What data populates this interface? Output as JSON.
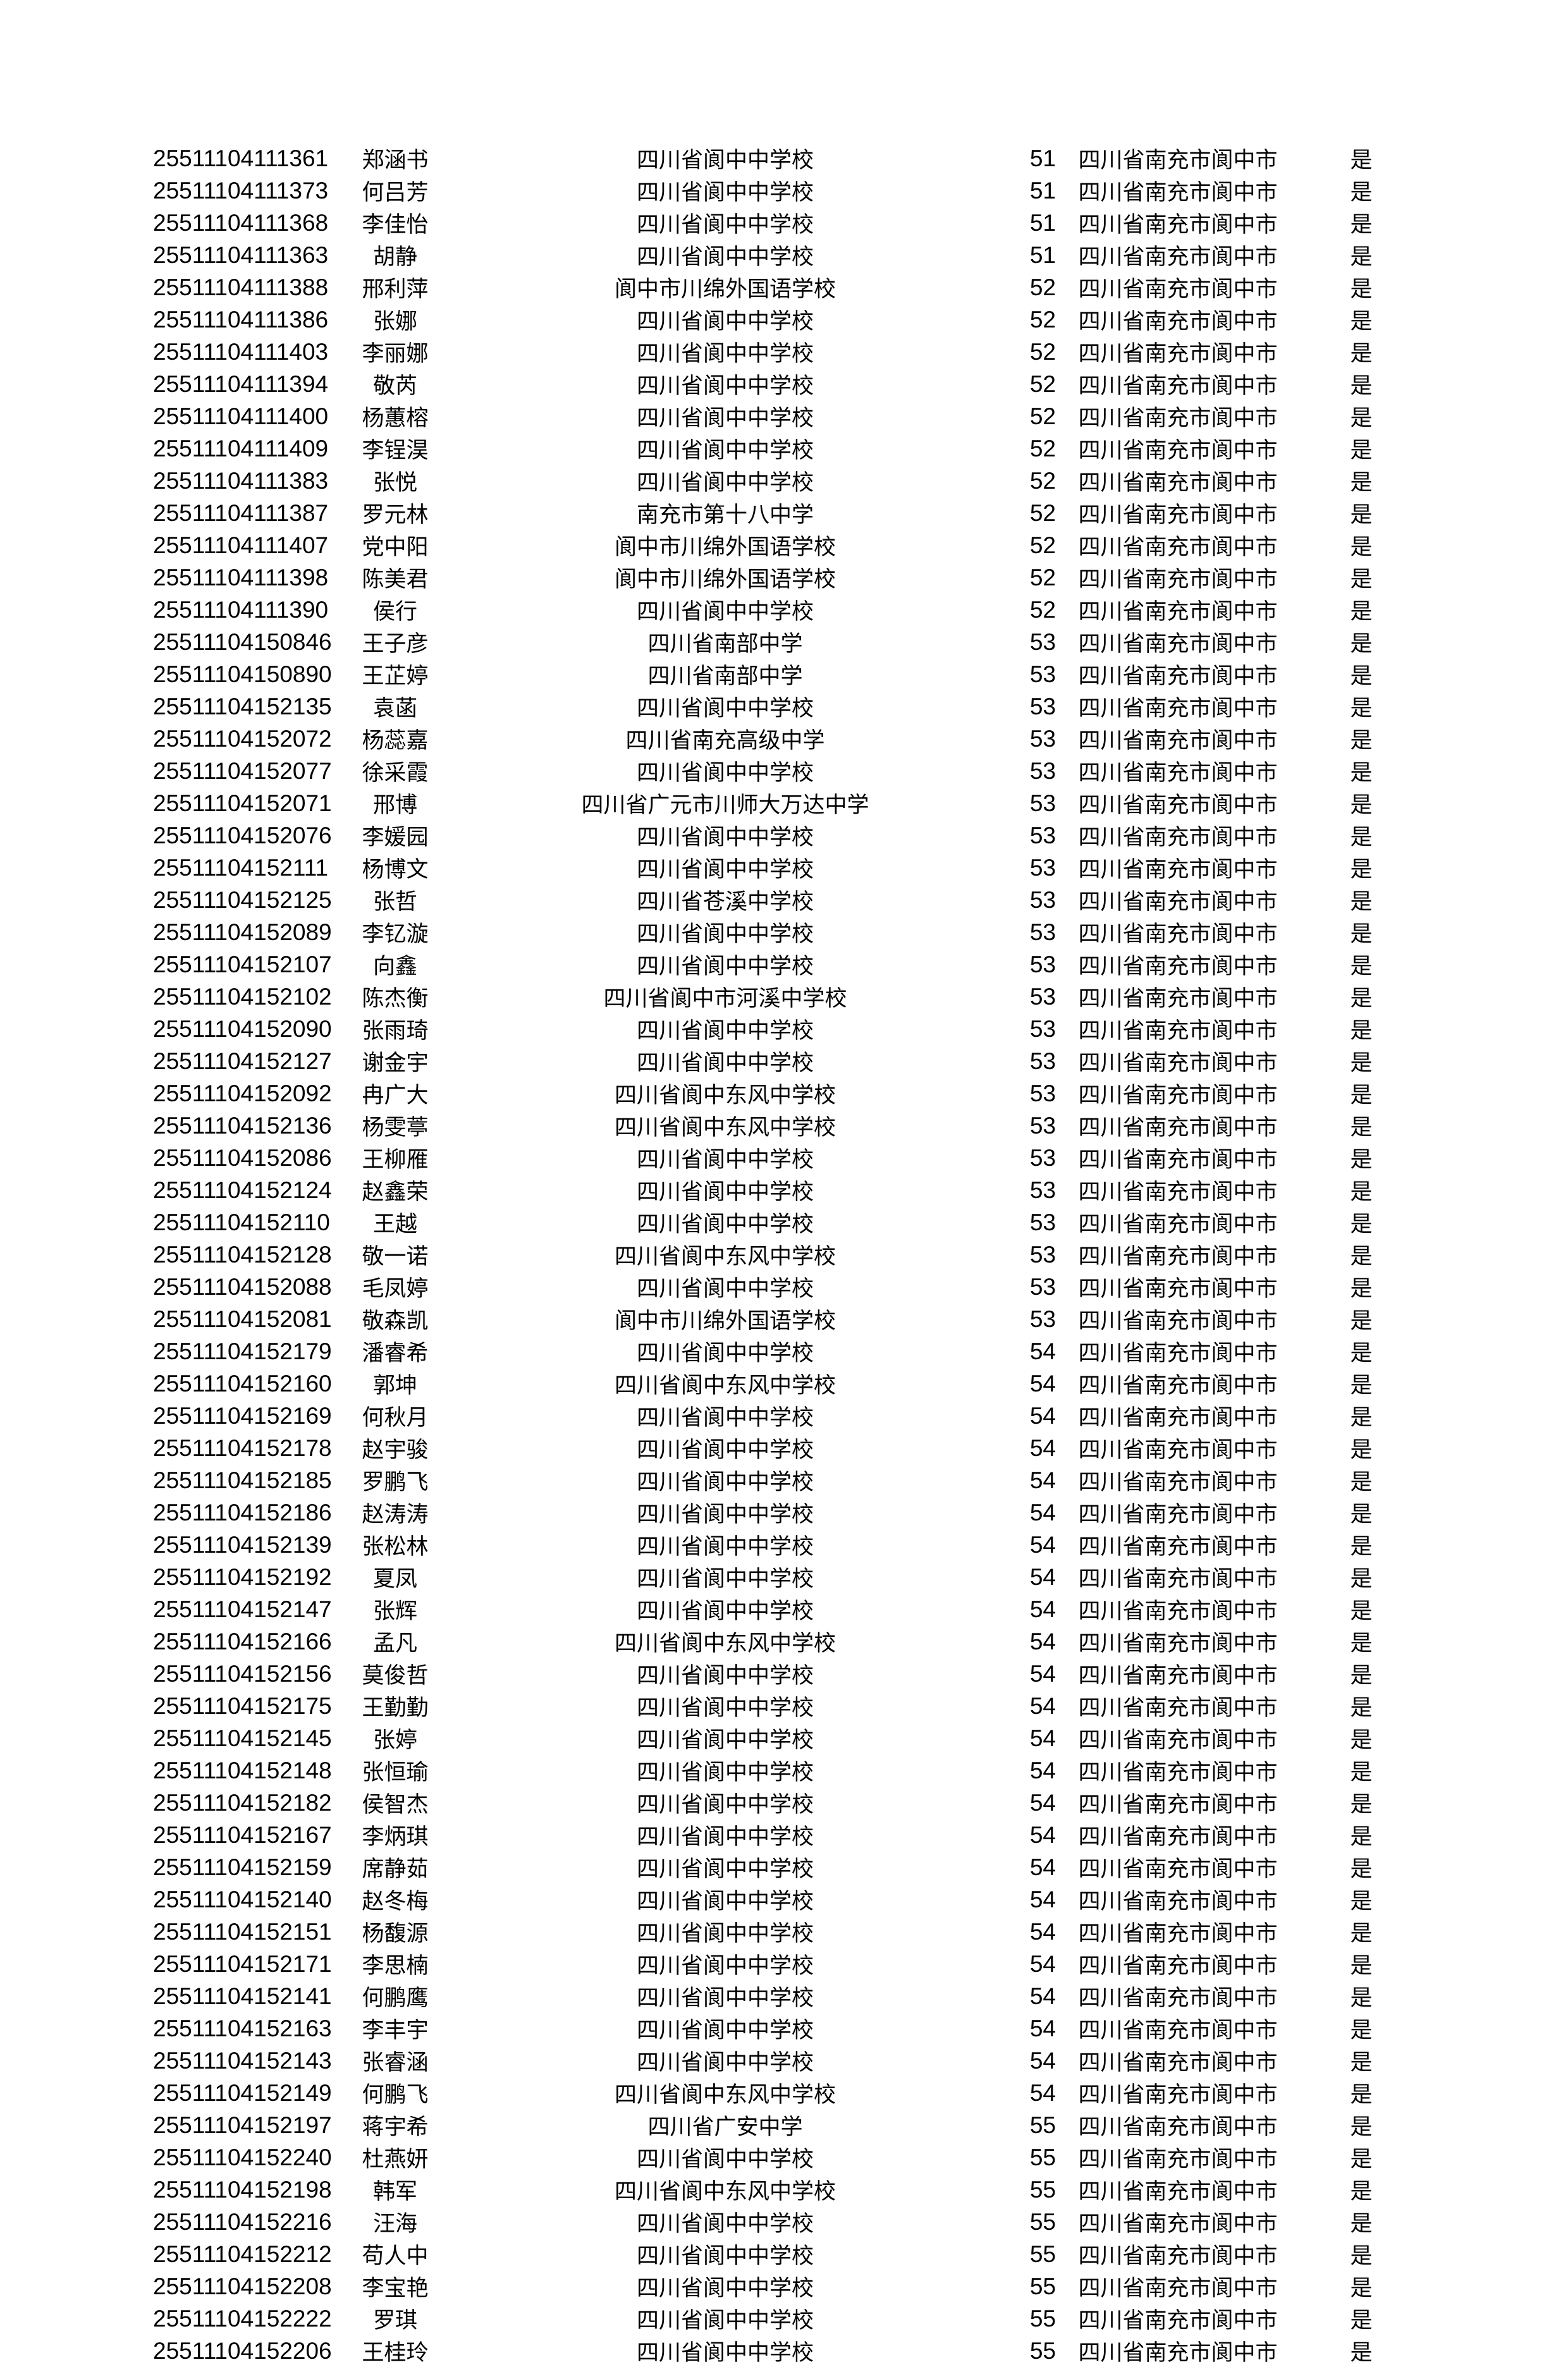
{
  "page": {
    "background_color": "#ffffff",
    "text_color": "#000000"
  },
  "table": {
    "rows": [
      [
        "25511104111361",
        "郑涵书",
        "四川省阆中中学校",
        "51",
        "四川省南充市阆中市",
        "是"
      ],
      [
        "25511104111373",
        "何吕芳",
        "四川省阆中中学校",
        "51",
        "四川省南充市阆中市",
        "是"
      ],
      [
        "25511104111368",
        "李佳怡",
        "四川省阆中中学校",
        "51",
        "四川省南充市阆中市",
        "是"
      ],
      [
        "25511104111363",
        "胡静",
        "四川省阆中中学校",
        "51",
        "四川省南充市阆中市",
        "是"
      ],
      [
        "25511104111388",
        "邢利萍",
        "阆中市川绵外国语学校",
        "52",
        "四川省南充市阆中市",
        "是"
      ],
      [
        "25511104111386",
        "张娜",
        "四川省阆中中学校",
        "52",
        "四川省南充市阆中市",
        "是"
      ],
      [
        "25511104111403",
        "李丽娜",
        "四川省阆中中学校",
        "52",
        "四川省南充市阆中市",
        "是"
      ],
      [
        "25511104111394",
        "敬芮",
        "四川省阆中中学校",
        "52",
        "四川省南充市阆中市",
        "是"
      ],
      [
        "25511104111400",
        "杨蕙榕",
        "四川省阆中中学校",
        "52",
        "四川省南充市阆中市",
        "是"
      ],
      [
        "25511104111409",
        "李锃淏",
        "四川省阆中中学校",
        "52",
        "四川省南充市阆中市",
        "是"
      ],
      [
        "25511104111383",
        "张悦",
        "四川省阆中中学校",
        "52",
        "四川省南充市阆中市",
        "是"
      ],
      [
        "25511104111387",
        "罗元林",
        "南充市第十八中学",
        "52",
        "四川省南充市阆中市",
        "是"
      ],
      [
        "25511104111407",
        "党中阳",
        "阆中市川绵外国语学校",
        "52",
        "四川省南充市阆中市",
        "是"
      ],
      [
        "25511104111398",
        "陈美君",
        "阆中市川绵外国语学校",
        "52",
        "四川省南充市阆中市",
        "是"
      ],
      [
        "25511104111390",
        "侯行",
        "四川省阆中中学校",
        "52",
        "四川省南充市阆中市",
        "是"
      ],
      [
        "25511104150846",
        "王子彦",
        "四川省南部中学",
        "53",
        "四川省南充市阆中市",
        "是"
      ],
      [
        "25511104150890",
        "王芷婷",
        "四川省南部中学",
        "53",
        "四川省南充市阆中市",
        "是"
      ],
      [
        "25511104152135",
        "袁菡",
        "四川省阆中中学校",
        "53",
        "四川省南充市阆中市",
        "是"
      ],
      [
        "25511104152072",
        "杨蕊嘉",
        "四川省南充高级中学",
        "53",
        "四川省南充市阆中市",
        "是"
      ],
      [
        "25511104152077",
        "徐采霞",
        "四川省阆中中学校",
        "53",
        "四川省南充市阆中市",
        "是"
      ],
      [
        "25511104152071",
        "邢博",
        "四川省广元市川师大万达中学",
        "53",
        "四川省南充市阆中市",
        "是"
      ],
      [
        "25511104152076",
        "李媛园",
        "四川省阆中中学校",
        "53",
        "四川省南充市阆中市",
        "是"
      ],
      [
        "25511104152111",
        "杨博文",
        "四川省阆中中学校",
        "53",
        "四川省南充市阆中市",
        "是"
      ],
      [
        "25511104152125",
        "张哲",
        "四川省苍溪中学校",
        "53",
        "四川省南充市阆中市",
        "是"
      ],
      [
        "25511104152089",
        "李钇漩",
        "四川省阆中中学校",
        "53",
        "四川省南充市阆中市",
        "是"
      ],
      [
        "25511104152107",
        "向鑫",
        "四川省阆中中学校",
        "53",
        "四川省南充市阆中市",
        "是"
      ],
      [
        "25511104152102",
        "陈杰衡",
        "四川省阆中市河溪中学校",
        "53",
        "四川省南充市阆中市",
        "是"
      ],
      [
        "25511104152090",
        "张雨琦",
        "四川省阆中中学校",
        "53",
        "四川省南充市阆中市",
        "是"
      ],
      [
        "25511104152127",
        "谢金宇",
        "四川省阆中中学校",
        "53",
        "四川省南充市阆中市",
        "是"
      ],
      [
        "25511104152092",
        "冉广大",
        "四川省阆中东风中学校",
        "53",
        "四川省南充市阆中市",
        "是"
      ],
      [
        "25511104152136",
        "杨雯葶",
        "四川省阆中东风中学校",
        "53",
        "四川省南充市阆中市",
        "是"
      ],
      [
        "25511104152086",
        "王柳雁",
        "四川省阆中中学校",
        "53",
        "四川省南充市阆中市",
        "是"
      ],
      [
        "25511104152124",
        "赵鑫荣",
        "四川省阆中中学校",
        "53",
        "四川省南充市阆中市",
        "是"
      ],
      [
        "25511104152110",
        "王越",
        "四川省阆中中学校",
        "53",
        "四川省南充市阆中市",
        "是"
      ],
      [
        "25511104152128",
        "敬一诺",
        "四川省阆中东风中学校",
        "53",
        "四川省南充市阆中市",
        "是"
      ],
      [
        "25511104152088",
        "毛凤婷",
        "四川省阆中中学校",
        "53",
        "四川省南充市阆中市",
        "是"
      ],
      [
        "25511104152081",
        "敬森凯",
        "阆中市川绵外国语学校",
        "53",
        "四川省南充市阆中市",
        "是"
      ],
      [
        "25511104152179",
        "潘睿希",
        "四川省阆中中学校",
        "54",
        "四川省南充市阆中市",
        "是"
      ],
      [
        "25511104152160",
        "郭坤",
        "四川省阆中东风中学校",
        "54",
        "四川省南充市阆中市",
        "是"
      ],
      [
        "25511104152169",
        "何秋月",
        "四川省阆中中学校",
        "54",
        "四川省南充市阆中市",
        "是"
      ],
      [
        "25511104152178",
        "赵宇骏",
        "四川省阆中中学校",
        "54",
        "四川省南充市阆中市",
        "是"
      ],
      [
        "25511104152185",
        "罗鹏飞",
        "四川省阆中中学校",
        "54",
        "四川省南充市阆中市",
        "是"
      ],
      [
        "25511104152186",
        "赵涛涛",
        "四川省阆中中学校",
        "54",
        "四川省南充市阆中市",
        "是"
      ],
      [
        "25511104152139",
        "张松林",
        "四川省阆中中学校",
        "54",
        "四川省南充市阆中市",
        "是"
      ],
      [
        "25511104152192",
        "夏凤",
        "四川省阆中中学校",
        "54",
        "四川省南充市阆中市",
        "是"
      ],
      [
        "25511104152147",
        "张辉",
        "四川省阆中中学校",
        "54",
        "四川省南充市阆中市",
        "是"
      ],
      [
        "25511104152166",
        "孟凡",
        "四川省阆中东风中学校",
        "54",
        "四川省南充市阆中市",
        "是"
      ],
      [
        "25511104152156",
        "莫俊哲",
        "四川省阆中中学校",
        "54",
        "四川省南充市阆中市",
        "是"
      ],
      [
        "25511104152175",
        "王勤勤",
        "四川省阆中中学校",
        "54",
        "四川省南充市阆中市",
        "是"
      ],
      [
        "25511104152145",
        "张婷",
        "四川省阆中中学校",
        "54",
        "四川省南充市阆中市",
        "是"
      ],
      [
        "25511104152148",
        "张恒瑜",
        "四川省阆中中学校",
        "54",
        "四川省南充市阆中市",
        "是"
      ],
      [
        "25511104152182",
        "侯智杰",
        "四川省阆中中学校",
        "54",
        "四川省南充市阆中市",
        "是"
      ],
      [
        "25511104152167",
        "李炳琪",
        "四川省阆中中学校",
        "54",
        "四川省南充市阆中市",
        "是"
      ],
      [
        "25511104152159",
        "席静茹",
        "四川省阆中中学校",
        "54",
        "四川省南充市阆中市",
        "是"
      ],
      [
        "25511104152140",
        "赵冬梅",
        "四川省阆中中学校",
        "54",
        "四川省南充市阆中市",
        "是"
      ],
      [
        "25511104152151",
        "杨馥源",
        "四川省阆中中学校",
        "54",
        "四川省南充市阆中市",
        "是"
      ],
      [
        "25511104152171",
        "李思楠",
        "四川省阆中中学校",
        "54",
        "四川省南充市阆中市",
        "是"
      ],
      [
        "25511104152141",
        "何鹏鹰",
        "四川省阆中中学校",
        "54",
        "四川省南充市阆中市",
        "是"
      ],
      [
        "25511104152163",
        "李丰宇",
        "四川省阆中中学校",
        "54",
        "四川省南充市阆中市",
        "是"
      ],
      [
        "25511104152143",
        "张睿涵",
        "四川省阆中中学校",
        "54",
        "四川省南充市阆中市",
        "是"
      ],
      [
        "25511104152149",
        "何鹏飞",
        "四川省阆中东风中学校",
        "54",
        "四川省南充市阆中市",
        "是"
      ],
      [
        "25511104152197",
        "蒋宇希",
        "四川省广安中学",
        "55",
        "四川省南充市阆中市",
        "是"
      ],
      [
        "25511104152240",
        "杜燕妍",
        "四川省阆中中学校",
        "55",
        "四川省南充市阆中市",
        "是"
      ],
      [
        "25511104152198",
        "韩军",
        "四川省阆中东风中学校",
        "55",
        "四川省南充市阆中市",
        "是"
      ],
      [
        "25511104152216",
        "汪海",
        "四川省阆中中学校",
        "55",
        "四川省南充市阆中市",
        "是"
      ],
      [
        "25511104152212",
        "苟人中",
        "四川省阆中中学校",
        "55",
        "四川省南充市阆中市",
        "是"
      ],
      [
        "25511104152208",
        "李宝艳",
        "四川省阆中中学校",
        "55",
        "四川省南充市阆中市",
        "是"
      ],
      [
        "25511104152222",
        "罗琪",
        "四川省阆中中学校",
        "55",
        "四川省南充市阆中市",
        "是"
      ],
      [
        "25511104152206",
        "王桂玲",
        "四川省阆中中学校",
        "55",
        "四川省南充市阆中市",
        "是"
      ]
    ]
  }
}
